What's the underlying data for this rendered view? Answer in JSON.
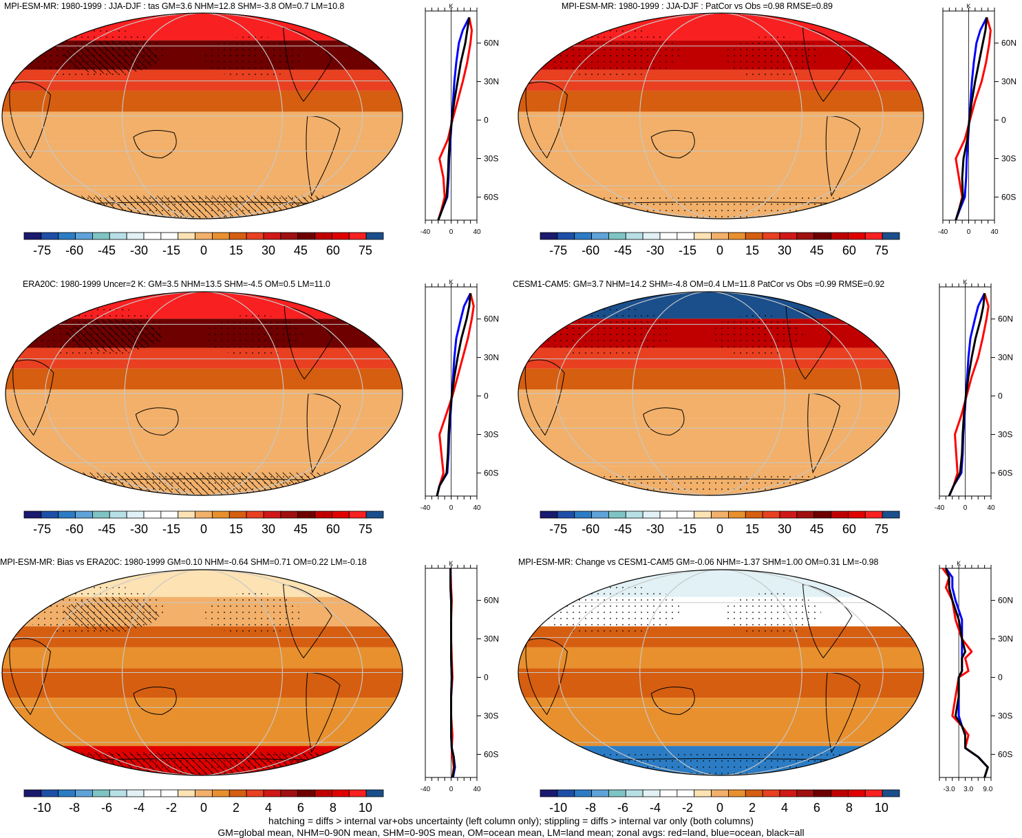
{
  "chart_data": [
    {
      "type": "heatmap",
      "title": "MPI-ESM-MR: 1980-1999 : JJA-DJF : tas GM=3.6 NHM=12.8 SHM=-3.8 OM=0.7 LM=10.8",
      "colorbar_ticks": [
        "-75",
        "-60",
        "-45",
        "-30",
        "-15",
        "0",
        "15",
        "30",
        "45",
        "60",
        "75"
      ],
      "colorbar_range": [
        -75,
        75
      ],
      "lat_band_values": [
        70,
        45,
        25,
        12,
        3,
        0,
        0
      ],
      "profile": {
        "unit": "K",
        "xlim": [
          -40,
          40
        ],
        "x_ticks": [
          "-40",
          "0",
          "40"
        ],
        "y_ticks": [
          "60N",
          "30N",
          "0",
          "30S",
          "60S"
        ],
        "series": [
          {
            "name": "land",
            "color": "#ff0000",
            "lat": [
              80,
              70,
              60,
              45,
              30,
              15,
              0,
              -15,
              -30,
              -45,
              -60,
              -70,
              -78
            ],
            "values": [
              28,
              32,
              30,
              25,
              18,
              10,
              2,
              -5,
              -18,
              -12,
              -10,
              -15,
              -20
            ]
          },
          {
            "name": "ocean",
            "color": "#0000ff",
            "lat": [
              80,
              70,
              60,
              45,
              30,
              15,
              0,
              -15,
              -30,
              -45,
              -60,
              -70,
              -78
            ],
            "values": [
              28,
              18,
              12,
              8,
              5,
              3,
              1,
              -1,
              -3,
              -4,
              -6,
              -14,
              -20
            ]
          },
          {
            "name": "all",
            "color": "#000000",
            "lat": [
              80,
              70,
              60,
              45,
              30,
              15,
              0,
              -15,
              -30,
              -45,
              -60,
              -70,
              -78
            ],
            "values": [
              28,
              25,
              22,
              15,
              10,
              5,
              1,
              -2,
              -4,
              -5,
              -7,
              -14,
              -20
            ]
          }
        ]
      }
    },
    {
      "type": "heatmap",
      "title": "MPI-ESM-MR: 1980-1999 : JJA-DJF : PatCor vs Obs =0.98 RMSE=0.89",
      "colorbar_ticks": [
        "-75",
        "-60",
        "-45",
        "-30",
        "-15",
        "0",
        "15",
        "30",
        "45",
        "60",
        "75"
      ],
      "colorbar_range": [
        -75,
        75
      ],
      "lat_band_values": [
        70,
        50,
        25,
        12,
        3,
        0,
        0
      ],
      "profile": {
        "unit": "K",
        "xlim": [
          -40,
          40
        ],
        "x_ticks": [
          "-40",
          "0",
          "40"
        ],
        "y_ticks": [
          "60N",
          "30N",
          "0",
          "30S",
          "60S"
        ],
        "series": [
          {
            "name": "land",
            "color": "#ff0000",
            "lat": [
              80,
              70,
              60,
              45,
              30,
              15,
              0,
              -15,
              -30,
              -45,
              -60,
              -70,
              -78
            ],
            "values": [
              28,
              34,
              32,
              27,
              20,
              10,
              2,
              -6,
              -20,
              -15,
              -10,
              -15,
              -20
            ]
          },
          {
            "name": "ocean",
            "color": "#0000ff",
            "lat": [
              80,
              70,
              60,
              45,
              30,
              15,
              0,
              -15,
              -30,
              -45,
              -60,
              -70,
              -78
            ],
            "values": [
              28,
              18,
              12,
              8,
              5,
              3,
              1,
              -1,
              -3,
              -4,
              -6,
              -14,
              -20
            ]
          },
          {
            "name": "all",
            "color": "#000000",
            "lat": [
              80,
              70,
              60,
              45,
              30,
              15,
              0,
              -15,
              -30,
              -45,
              -60,
              -70,
              -78
            ],
            "values": [
              28,
              26,
              22,
              16,
              10,
              5,
              1,
              -2,
              -8,
              -10,
              -9,
              -15,
              -20
            ]
          }
        ]
      }
    },
    {
      "type": "heatmap",
      "title": "ERA20C: 1980-1999 Uncer=2 K: GM=3.5 NHM=13.5 SHM=-4.5 OM=0.5 LM=11.0",
      "colorbar_ticks": [
        "-75",
        "-60",
        "-45",
        "-30",
        "-15",
        "0",
        "15",
        "30",
        "45",
        "60",
        "75"
      ],
      "colorbar_range": [
        -75,
        75
      ],
      "lat_band_values": [
        70,
        45,
        25,
        12,
        3,
        0,
        0
      ],
      "profile": {
        "unit": "K",
        "xlim": [
          -40,
          40
        ],
        "x_ticks": [
          "-40",
          "0",
          "40"
        ],
        "y_ticks": [
          "60N",
          "30N",
          "0",
          "30S",
          "60S"
        ],
        "series": [
          {
            "name": "land",
            "color": "#ff0000",
            "lat": [
              80,
              70,
              60,
              45,
              30,
              15,
              0,
              -15,
              -30,
              -45,
              -60,
              -70,
              -78
            ],
            "values": [
              30,
              35,
              32,
              26,
              18,
              10,
              2,
              -8,
              -18,
              -15,
              -12,
              -18,
              -22
            ]
          },
          {
            "name": "ocean",
            "color": "#0000ff",
            "lat": [
              80,
              70,
              60,
              45,
              30,
              15,
              0,
              -15,
              -30,
              -45,
              -60,
              -70,
              -78
            ],
            "values": [
              30,
              20,
              15,
              8,
              5,
              3,
              1,
              -1,
              -3,
              -4,
              -6,
              -18,
              -22
            ]
          },
          {
            "name": "all",
            "color": "#000000",
            "lat": [
              80,
              70,
              60,
              45,
              30,
              15,
              0,
              -15,
              -30,
              -45,
              -60,
              -70,
              -78
            ],
            "values": [
              30,
              28,
              24,
              16,
              10,
              5,
              1,
              -2,
              -4,
              -5,
              -7,
              -18,
              -22
            ]
          }
        ]
      }
    },
    {
      "type": "heatmap",
      "title": "CESM1-CAM5: GM=3.7 NHM=14.2 SHM=-4.8 OM=0.4 LM=11.8 PatCor vs Obs =0.99 RMSE=0.92",
      "colorbar_ticks": [
        "-75",
        "-60",
        "-45",
        "-30",
        "-15",
        "0",
        "15",
        "30",
        "45",
        "60",
        "75"
      ],
      "colorbar_range": [
        -75,
        75
      ],
      "lat_band_values": [
        72,
        50,
        25,
        12,
        3,
        0,
        0
      ],
      "profile": {
        "unit": "K",
        "xlim": [
          -40,
          40
        ],
        "x_ticks": [
          "-40",
          "0",
          "40"
        ],
        "y_ticks": [
          "60N",
          "30N",
          "0",
          "30S",
          "60S"
        ],
        "series": [
          {
            "name": "land",
            "color": "#ff0000",
            "lat": [
              80,
              70,
              60,
              45,
              30,
              15,
              0,
              -15,
              -30,
              -45,
              -60,
              -70,
              -78
            ],
            "values": [
              30,
              36,
              33,
              27,
              20,
              10,
              2,
              -6,
              -16,
              -14,
              -12,
              -18,
              -25
            ]
          },
          {
            "name": "ocean",
            "color": "#0000ff",
            "lat": [
              80,
              70,
              60,
              45,
              30,
              15,
              0,
              -15,
              -30,
              -45,
              -60,
              -70,
              -78
            ],
            "values": [
              30,
              20,
              15,
              8,
              5,
              3,
              1,
              -1,
              -3,
              -4,
              -6,
              -18,
              -25
            ]
          },
          {
            "name": "all",
            "color": "#000000",
            "lat": [
              80,
              70,
              60,
              45,
              30,
              15,
              0,
              -15,
              -30,
              -45,
              -60,
              -70,
              -78
            ],
            "values": [
              30,
              28,
              24,
              16,
              10,
              5,
              1,
              -2,
              -4,
              -5,
              -8,
              -18,
              -25
            ]
          }
        ]
      }
    },
    {
      "type": "heatmap",
      "title": "MPI-ESM-MR: Bias vs ERA20C: 1980-1999 GM=0.10 NHM=-0.64 SHM=0.71 OM=0.22 LM=-0.18",
      "colorbar_ticks": [
        "-10",
        "-8",
        "-6",
        "-4",
        "-2",
        "0",
        "2",
        "4",
        "6",
        "8",
        "10"
      ],
      "colorbar_range": [
        -10,
        10
      ],
      "lat_band_values": [
        -1,
        -0.5,
        2,
        1,
        1.5,
        0.5,
        8
      ],
      "profile": {
        "unit": "K",
        "xlim": [
          -40,
          40
        ],
        "x_ticks": [
          "-40",
          "0",
          "40"
        ],
        "y_ticks": [
          "60N",
          "30N",
          "0",
          "30S",
          "60S"
        ],
        "series": [
          {
            "name": "land",
            "color": "#ff0000",
            "lat": [
              85,
              70,
              60,
              45,
              30,
              15,
              0,
              -15,
              -30,
              -45,
              -55,
              -62,
              -70,
              -78
            ],
            "values": [
              -1,
              0,
              1,
              0,
              0,
              1,
              2,
              0,
              0,
              2,
              1,
              2,
              4,
              2
            ]
          },
          {
            "name": "ocean",
            "color": "#0000ff",
            "lat": [
              85,
              70,
              60,
              45,
              30,
              15,
              0,
              -15,
              -30,
              -45,
              -55,
              -62,
              -70,
              -78
            ],
            "values": [
              -1,
              -1,
              0,
              0,
              0,
              0,
              1,
              0,
              0,
              0,
              1,
              4,
              6,
              3
            ]
          },
          {
            "name": "all",
            "color": "#000000",
            "lat": [
              85,
              70,
              60,
              45,
              30,
              15,
              0,
              -15,
              -30,
              -45,
              -55,
              -62,
              -70,
              -78
            ],
            "values": [
              -1,
              -1,
              0,
              0,
              0,
              0,
              1,
              0,
              0,
              0,
              1,
              4,
              5,
              2
            ]
          }
        ]
      }
    },
    {
      "type": "heatmap",
      "title": "MPI-ESM-MR: Change vs CESM1-CAM5 GM=-0.06 NHM=-1.37 SHM=1.00 OM=0.31 LM=-0.98",
      "colorbar_ticks": [
        "-10",
        "-8",
        "-6",
        "-4",
        "-2",
        "0",
        "2",
        "4",
        "6",
        "8",
        "10"
      ],
      "colorbar_range": [
        -10,
        10
      ],
      "lat_band_values": [
        -4,
        -3,
        2,
        1,
        1.5,
        0.5,
        -8
      ],
      "profile": {
        "unit": "K",
        "xlim": [
          -6,
          10
        ],
        "x_ticks": [
          "-3.0",
          "3.0",
          "9.0"
        ],
        "y_ticks": [
          "60N",
          "30N",
          "0",
          "30S",
          "60S"
        ],
        "series": [
          {
            "name": "land",
            "color": "#ff0000",
            "lat": [
              85,
              78,
              70,
              60,
              45,
              30,
              20,
              15,
              5,
              0,
              -15,
              -30,
              -38,
              -45,
              -55,
              -62,
              -70,
              -78
            ],
            "values": [
              -5,
              -3,
              -4,
              -2,
              -1,
              1,
              4,
              2,
              3,
              0,
              -1,
              -2,
              1,
              3,
              2,
              6,
              9,
              8
            ]
          },
          {
            "name": "ocean",
            "color": "#0000ff",
            "lat": [
              85,
              78,
              70,
              60,
              45,
              30,
              20,
              15,
              5,
              0,
              -15,
              -30,
              -38,
              -45,
              -55,
              -62,
              -70,
              -78
            ],
            "values": [
              -4,
              -2,
              -2,
              -1,
              1,
              1,
              1,
              1,
              1,
              0,
              0,
              0,
              1,
              2,
              2,
              6,
              9,
              8
            ]
          },
          {
            "name": "all",
            "color": "#000000",
            "lat": [
              85,
              78,
              70,
              60,
              45,
              30,
              20,
              15,
              5,
              0,
              -15,
              -30,
              -38,
              -45,
              -55,
              -62,
              -70,
              -78
            ],
            "values": [
              -4,
              -3,
              -3,
              -2,
              0,
              1,
              2,
              1,
              1,
              0,
              0,
              -1,
              1,
              2,
              2,
              6,
              9,
              8
            ]
          }
        ]
      }
    }
  ],
  "colormap": [
    "#1a1a6e",
    "#1e4fa8",
    "#2b7cc4",
    "#5fa3d8",
    "#7fc4c4",
    "#b7dfe6",
    "#e1f1f5",
    "#ffffff",
    "#ffffff",
    "#fde2b3",
    "#f2b06a",
    "#e8902e",
    "#d65e10",
    "#e84020",
    "#d11818",
    "#a01010",
    "#6e0000",
    "#c00000",
    "#e00000",
    "#f82020",
    "#1a4f8c"
  ],
  "footer": {
    "line1": "hatching = diffs > internal var+obs uncertainty (left column only); stippling = diffs > internal var only (both columns)",
    "line2": "GM=global mean, NHM=0-90N mean, SHM=0-90S mean, OM=ocean mean, LM=land mean; zonal avgs: red=land, blue=ocean, black=all"
  }
}
